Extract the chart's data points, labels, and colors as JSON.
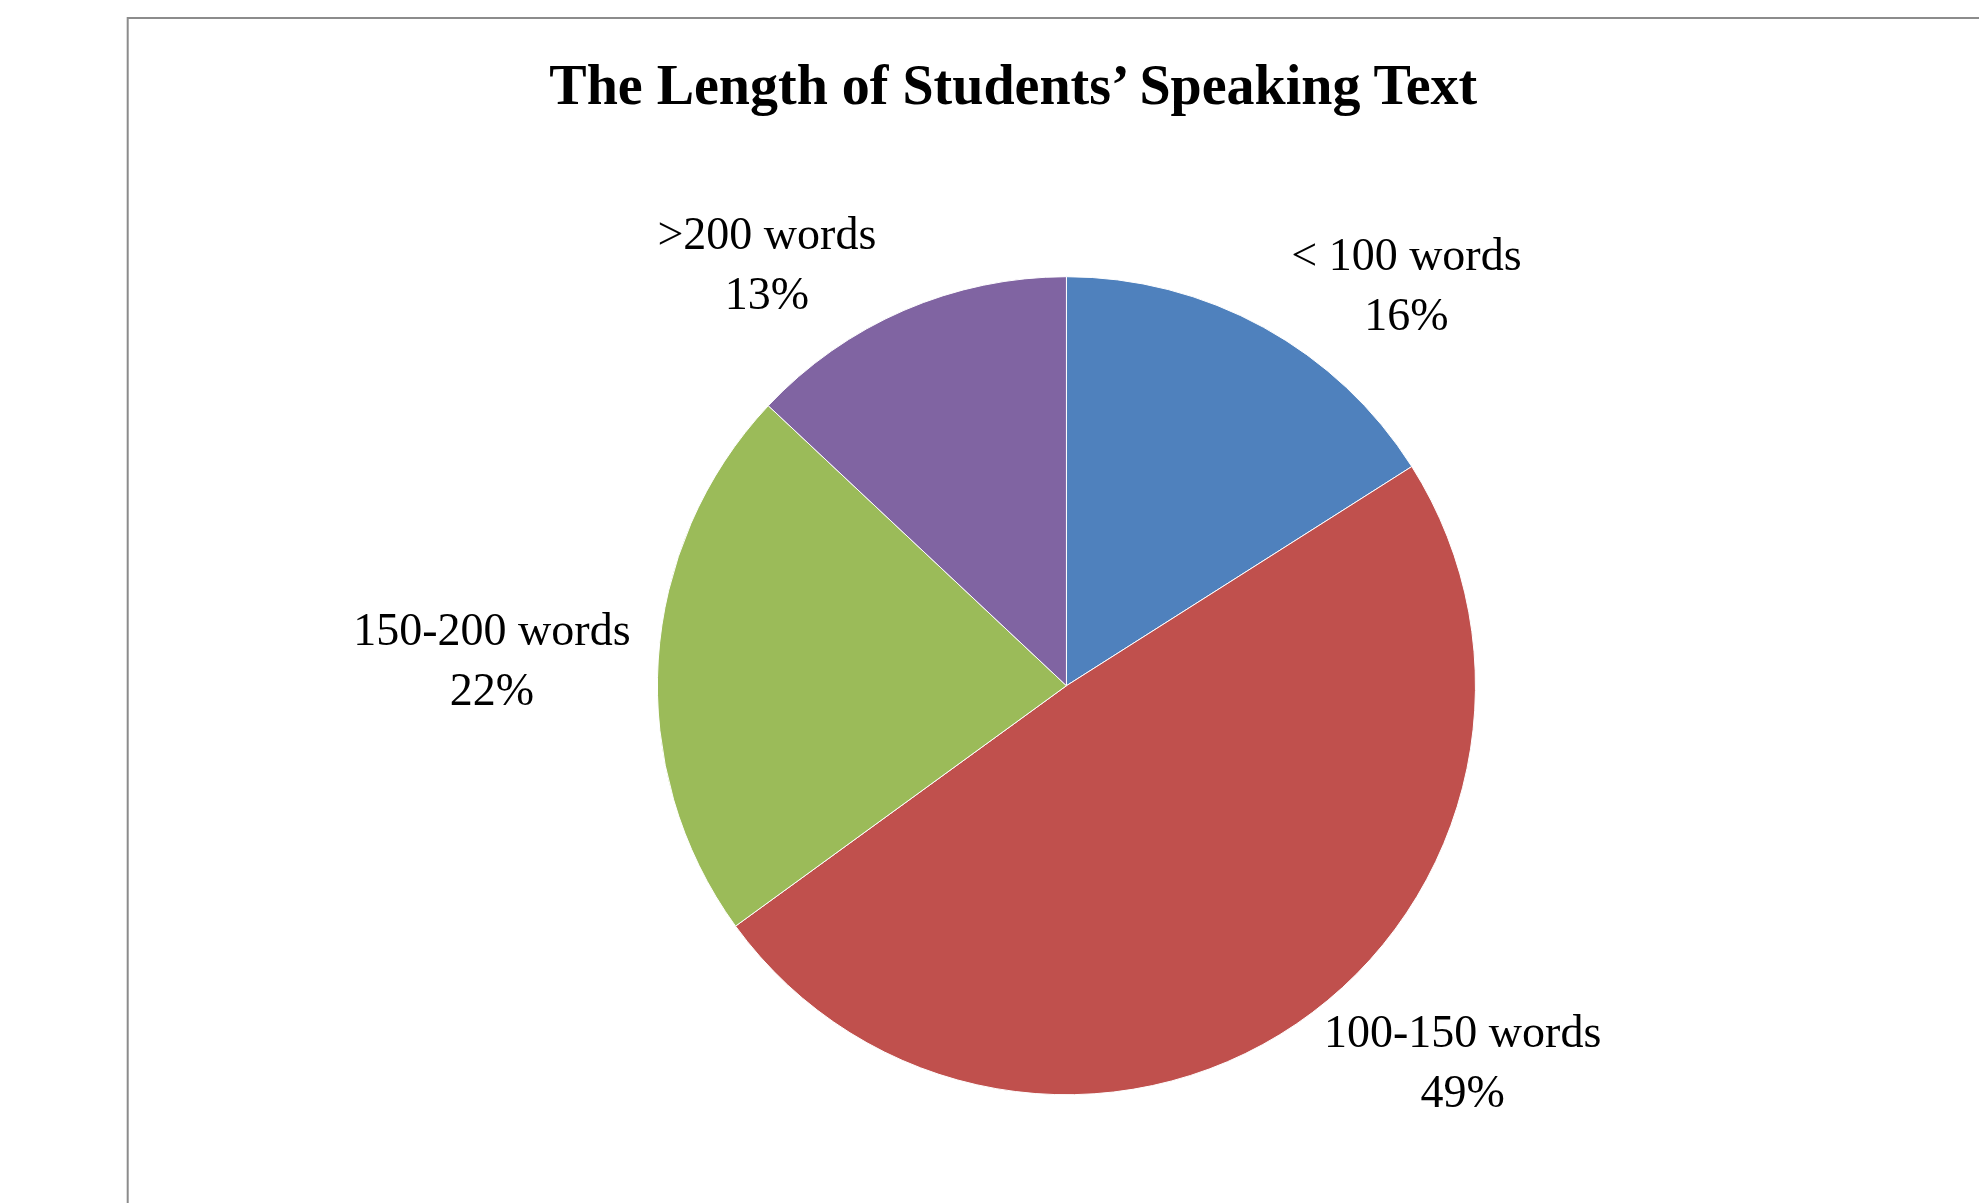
{
  "chart_data": {
    "type": "pie",
    "title": "The Length of Students’ Speaking Text",
    "categories": [
      "< 100 words",
      "100-150 words",
      "150-200 words",
      ">200 words"
    ],
    "values": [
      16,
      49,
      22,
      13
    ],
    "value_labels": [
      "16%",
      "49%",
      "22%",
      "13%"
    ],
    "colors": [
      "#4f81bd",
      "#c0504d",
      "#9bbb59",
      "#8064a2"
    ],
    "legend": false
  }
}
